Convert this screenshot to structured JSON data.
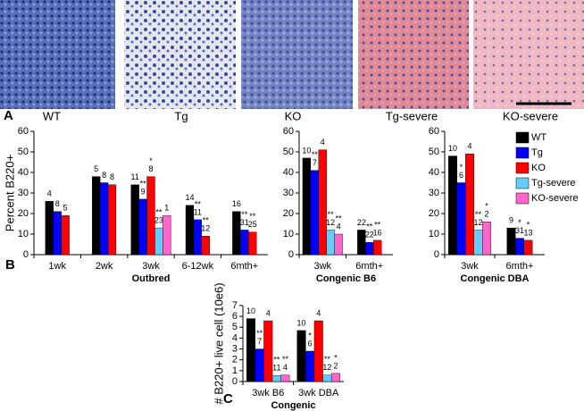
{
  "panel_a": {
    "letter": "A",
    "labels": [
      "WT",
      "Tg",
      "KO",
      "Tg-severe",
      "KO-severe"
    ]
  },
  "panel_b_letter": "B",
  "panel_c_letter": "C",
  "legend": [
    {
      "name": "WT",
      "color": "#000000"
    },
    {
      "name": "Tg",
      "color": "#0000ff"
    },
    {
      "name": "KO",
      "color": "#ff0000"
    },
    {
      "name": "Tg-severe",
      "color": "#66ccff"
    },
    {
      "name": "KO-severe",
      "color": "#ff66cc"
    }
  ],
  "chart_data": [
    {
      "type": "bar",
      "ylabel": "Percent B220+",
      "xlabel": "Outbred",
      "categories": [
        "1wk",
        "2wk",
        "3wk",
        "6-12wk",
        "6mth+"
      ],
      "ylim": [
        0,
        60
      ],
      "yticks": [
        0,
        10,
        20,
        30,
        40,
        50,
        60
      ],
      "series": [
        {
          "values": [
            26,
            38,
            34,
            24,
            21
          ],
          "n_labels": [
            4,
            5,
            11,
            14,
            16
          ],
          "stars": [
            null,
            null,
            null,
            null,
            null
          ]
        },
        {
          "values": [
            21,
            35,
            27,
            17,
            12
          ],
          "n_labels": [
            8,
            8,
            9,
            11,
            31
          ],
          "stars": [
            null,
            null,
            "**",
            "**",
            "**"
          ]
        },
        {
          "values": [
            19,
            34,
            38,
            9,
            11
          ],
          "n_labels": [
            5,
            8,
            8,
            12,
            25
          ],
          "stars": [
            null,
            null,
            "*",
            "**",
            "**"
          ]
        },
        {
          "values": [
            null,
            null,
            13,
            null,
            null
          ],
          "n_labels": [
            null,
            null,
            23,
            null,
            null
          ],
          "stars": [
            null,
            null,
            "**",
            null,
            null
          ]
        },
        {
          "values": [
            null,
            null,
            19,
            null,
            null
          ],
          "n_labels": [
            null,
            null,
            1,
            null,
            null
          ],
          "stars": [
            null,
            null,
            null,
            null,
            null
          ]
        }
      ]
    },
    {
      "type": "bar",
      "xlabel": "Congenic B6",
      "categories": [
        "3wk",
        "6mth+"
      ],
      "ylim": [
        0,
        60
      ],
      "yticks": [
        0,
        10,
        20,
        30,
        40,
        50,
        60
      ],
      "series": [
        {
          "values": [
            47,
            12
          ],
          "n_labels": [
            10,
            22
          ],
          "stars": [
            null,
            null
          ]
        },
        {
          "values": [
            41,
            6
          ],
          "n_labels": [
            7,
            22
          ],
          "stars": [
            "**",
            "**"
          ]
        },
        {
          "values": [
            51,
            7
          ],
          "n_labels": [
            4,
            16
          ],
          "stars": [
            null,
            "**"
          ]
        },
        {
          "values": [
            12,
            null
          ],
          "n_labels": [
            12,
            null
          ],
          "stars": [
            "**",
            null
          ]
        },
        {
          "values": [
            10,
            null
          ],
          "n_labels": [
            4,
            null
          ],
          "stars": [
            "**",
            null
          ]
        }
      ]
    },
    {
      "type": "bar",
      "xlabel": "Congenic DBA",
      "categories": [
        "3wk",
        "6mth+"
      ],
      "ylim": [
        0,
        60
      ],
      "yticks": [
        0,
        10,
        20,
        30,
        40,
        50,
        60
      ],
      "series": [
        {
          "values": [
            48,
            13
          ],
          "n_labels": [
            10,
            9
          ],
          "stars": [
            null,
            null
          ]
        },
        {
          "values": [
            35,
            8
          ],
          "n_labels": [
            6,
            31
          ],
          "stars": [
            "*",
            "*"
          ]
        },
        {
          "values": [
            49,
            7
          ],
          "n_labels": [
            4,
            13
          ],
          "stars": [
            null,
            "*"
          ]
        },
        {
          "values": [
            12,
            null
          ],
          "n_labels": [
            12,
            null
          ],
          "stars": [
            "**",
            null
          ]
        },
        {
          "values": [
            16,
            null
          ],
          "n_labels": [
            2,
            null
          ],
          "stars": [
            "*",
            null
          ]
        }
      ]
    },
    {
      "type": "bar",
      "ylabel": "# B220+ live cell (10e6)",
      "xlabel": "Congenic",
      "categories": [
        "3wk B6",
        "3wk DBA"
      ],
      "ylim": [
        0,
        7
      ],
      "yticks": [
        0,
        1,
        2,
        3,
        4,
        5,
        6,
        7
      ],
      "series": [
        {
          "values": [
            5.8,
            4.7
          ],
          "n_labels": [
            10,
            10
          ],
          "stars": [
            null,
            null
          ]
        },
        {
          "values": [
            3.0,
            2.8
          ],
          "n_labels": [
            7,
            6
          ],
          "stars": [
            "**",
            "*"
          ]
        },
        {
          "values": [
            5.6,
            5.6
          ],
          "n_labels": [
            4,
            4
          ],
          "stars": [
            null,
            null
          ]
        },
        {
          "values": [
            0.55,
            0.6
          ],
          "n_labels": [
            11,
            12
          ],
          "stars": [
            "**",
            "**"
          ]
        },
        {
          "values": [
            0.6,
            0.75
          ],
          "n_labels": [
            4,
            2
          ],
          "stars": [
            "**",
            "*"
          ]
        }
      ]
    }
  ]
}
